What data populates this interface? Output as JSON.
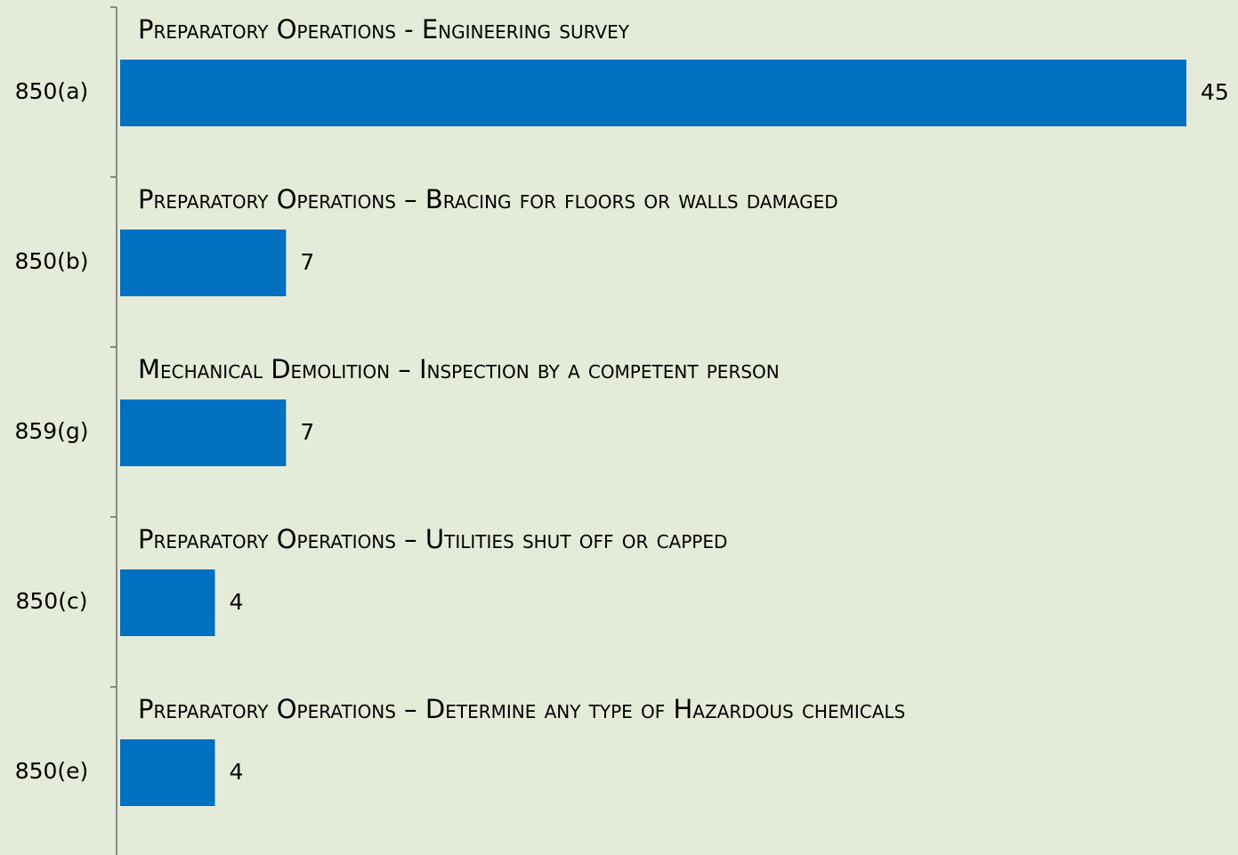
{
  "chart_data": {
    "type": "bar",
    "orientation": "horizontal",
    "categories": [
      "850(a)",
      "850(b)",
      "859(g)",
      "850(c)",
      "850(e)"
    ],
    "values": [
      45,
      7,
      7,
      4,
      4
    ],
    "annotations": [
      "Preparatory Operations - Engineering survey",
      "Preparatory Operations – Bracing for floors or walls damaged",
      "Mechanical Demolition – Inspection by a competent person",
      "Preparatory Operations – Utilities shut off or capped",
      "Preparatory Operations – Determine any type of Hazardous chemicals"
    ],
    "color": "#0070c0"
  }
}
